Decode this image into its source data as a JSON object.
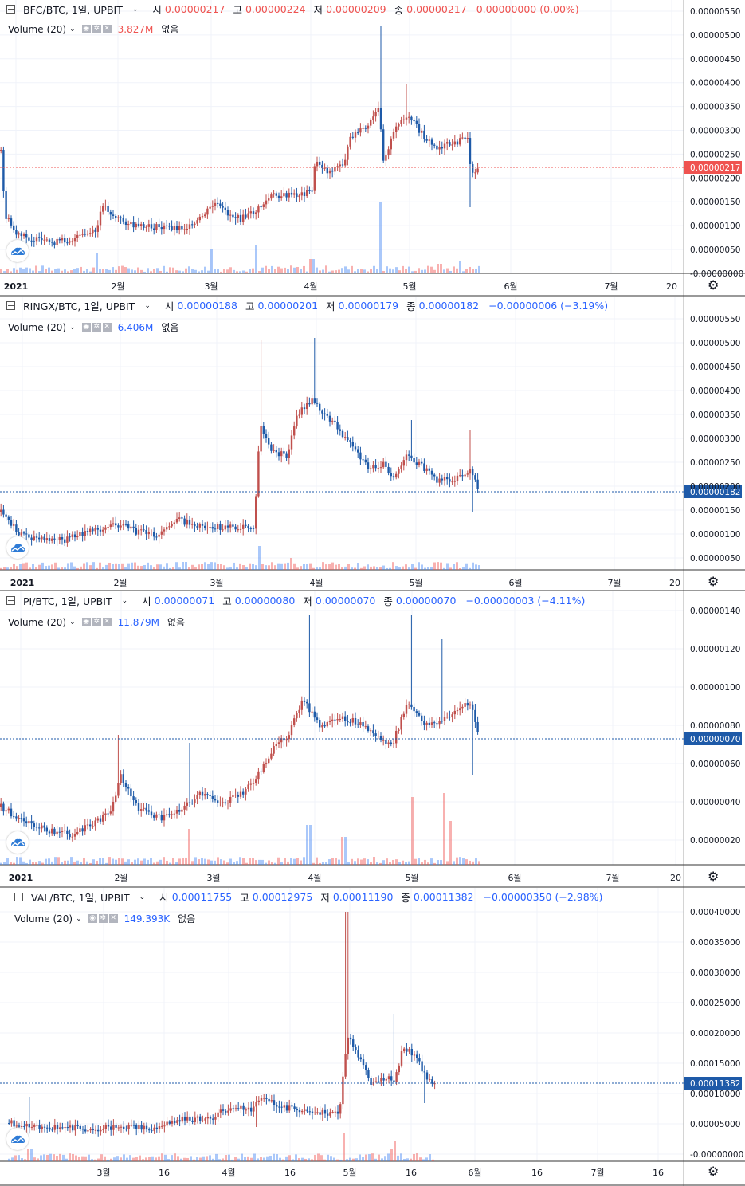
{
  "colors": {
    "up": "#ef5350",
    "down": "#2962ff",
    "upBody": "#c0504d",
    "downBody": "#1e5aa8",
    "volUp": "rgba(239,83,80,0.45)",
    "volDown": "rgba(66,133,244,0.45)",
    "grid": "#f0f3fa",
    "axis": "#131722"
  },
  "icons": {
    "collapse": "collapse-icon",
    "chevron": "chevron-down-icon",
    "settings": "gear-icon",
    "eye": "eye-icon",
    "close": "close-icon",
    "logo": "cloud-logo"
  },
  "panels": [
    {
      "header": {
        "symbol": "BFC/BTC, 1일, UPBIT",
        "chev": "⌄",
        "o_lbl": "시",
        "o": "0.00000217",
        "h_lbl": "고",
        "h": "0.00000224",
        "l_lbl": "저",
        "l": "0.00000209",
        "c_lbl": "종",
        "c": "0.00000217",
        "chg": "0.00000000 (0.00%)",
        "color": "#ef5350"
      },
      "volume": {
        "label": "Volume (20)",
        "value": "3.827M",
        "na": "없음",
        "color": "#ef5350"
      },
      "price_tag": "0.00000217",
      "tag_color": "#ef5350",
      "x_labels": [
        "2021",
        "2월",
        "3월",
        "4월",
        "5월",
        "6월",
        "7월",
        "20"
      ],
      "y_labels": [
        "0.00000550",
        "0.00000500",
        "0.00000450",
        "0.00000400",
        "0.00000350",
        "0.00000300",
        "0.00000250",
        "0.00000200",
        "0.00000150",
        "0.00000100",
        "0.00000050",
        "-0.00000000"
      ],
      "chart_data": {
        "type": "candlestick",
        "ylim": [
          0,
          5.5e-06
        ],
        "last": 2.17e-06
      }
    },
    {
      "header": {
        "symbol": "RINGX/BTC, 1일, UPBIT",
        "chev": "⌄",
        "o_lbl": "시",
        "o": "0.00000188",
        "h_lbl": "고",
        "h": "0.00000201",
        "l_lbl": "저",
        "l": "0.00000179",
        "c_lbl": "종",
        "c": "0.00000182",
        "chg": "−0.00000006 (−3.19%)",
        "color": "#2962ff"
      },
      "volume": {
        "label": "Volume (20)",
        "value": "6.406M",
        "na": "없음",
        "color": "#2962ff"
      },
      "price_tag": "0.00000182",
      "tag_color": "#1e5aa8",
      "x_labels": [
        "2021",
        "2월",
        "3월",
        "4월",
        "5월",
        "6월",
        "7월",
        "20"
      ],
      "y_labels": [
        "0.00000550",
        "0.00000500",
        "0.00000450",
        "0.00000400",
        "0.00000350",
        "0.00000300",
        "0.00000250",
        "0.00000200",
        "0.00000150",
        "0.00000100",
        "0.00000050"
      ],
      "chart_data": {
        "type": "candlestick",
        "ylim": [
          0,
          5.5e-06
        ],
        "last": 1.82e-06
      }
    },
    {
      "header": {
        "symbol": "PI/BTC, 1일, UPBIT",
        "chev": "⌄",
        "o_lbl": "시",
        "o": "0.00000071",
        "h_lbl": "고",
        "h": "0.00000080",
        "l_lbl": "저",
        "l": "0.00000070",
        "c_lbl": "종",
        "c": "0.00000070",
        "chg": "−0.00000003 (−4.11%)",
        "color": "#2962ff"
      },
      "volume": {
        "label": "Volume (20)",
        "value": "11.879M",
        "na": "없음",
        "color": "#2962ff"
      },
      "price_tag": "0.00000070",
      "tag_color": "#1e5aa8",
      "x_labels": [
        "2021",
        "2월",
        "3월",
        "4월",
        "5월",
        "6월",
        "7월",
        "20"
      ],
      "y_labels": [
        "0.00000140",
        "0.00000120",
        "0.00000100",
        "0.00000080",
        "0.00000060",
        "0.00000040",
        "0.00000020"
      ],
      "chart_data": {
        "type": "candlestick",
        "ylim": [
          0,
          1.4e-06
        ],
        "last": 7e-07
      }
    },
    {
      "header": {
        "symbol": "VAL/BTC, 1일, UPBIT",
        "chev": "⌄",
        "o_lbl": "시",
        "o": "0.00011755",
        "h_lbl": "고",
        "h": "0.00012975",
        "l_lbl": "저",
        "l": "0.00011190",
        "c_lbl": "종",
        "c": "0.00011382",
        "chg": "−0.00000350 (−2.98%)",
        "color": "#2962ff"
      },
      "volume": {
        "label": "Volume (20)",
        "value": "149.393K",
        "na": "없음",
        "color": "#2962ff"
      },
      "price_tag": "0.00011382",
      "tag_color": "#1e5aa8",
      "x_labels": [
        "3월",
        "16",
        "4월",
        "16",
        "5월",
        "16",
        "6월",
        "16",
        "7월",
        "16"
      ],
      "y_labels": [
        "0.00040000",
        "0.00035000",
        "0.00030000",
        "0.00025000",
        "0.00020000",
        "0.00015000",
        "0.00010000",
        "0.00005000",
        "-0.00000000"
      ],
      "chart_data": {
        "type": "candlestick",
        "ylim": [
          0,
          0.0004
        ],
        "last": 0.00011382
      }
    }
  ]
}
